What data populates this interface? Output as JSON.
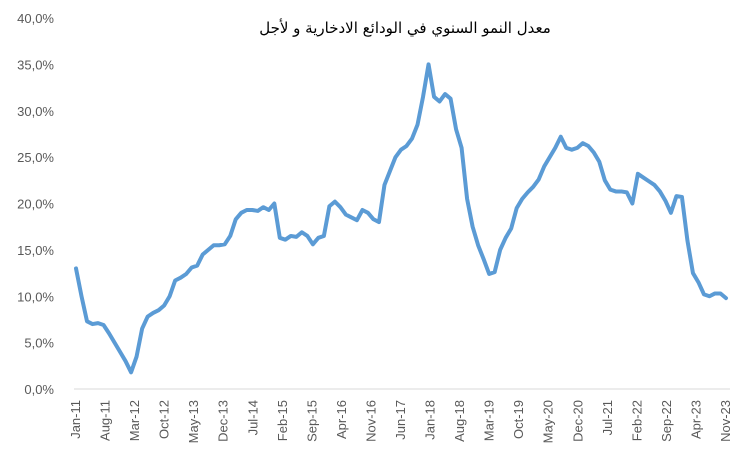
{
  "chart_data": {
    "type": "line",
    "title": "معدل النمو السنوي في الودائع الادخارية و لأجل",
    "xlabel": "",
    "ylabel": "",
    "ylim": [
      0,
      40
    ],
    "y_ticks": [
      "0,0%",
      "5,0%",
      "10,0%",
      "15,0%",
      "20,0%",
      "25,0%",
      "30,0%",
      "35,0%",
      "40,0%"
    ],
    "x_ticks": [
      "Jan-11",
      "Aug-11",
      "Mar-12",
      "Oct-12",
      "May-13",
      "Dec-13",
      "Jul-14",
      "Feb-15",
      "Sep-15",
      "Apr-16",
      "Nov-16",
      "Jun-17",
      "Jan-18",
      "Aug-18",
      "Mar-19",
      "Oct-19",
      "May-20",
      "Dec-20",
      "Jul-21",
      "Feb-22",
      "Sep-22",
      "Apr-23",
      "Nov-23"
    ],
    "grid": false,
    "legend": "none",
    "line_color": "#5B9BD5",
    "series": [
      {
        "values": [
          13,
          10,
          7.3,
          7,
          7.1,
          6.9,
          6,
          5,
          4,
          3,
          1.8,
          3.5,
          6.5,
          7.8,
          8.2,
          8.5,
          9,
          10,
          11.7,
          12,
          12.4,
          13.1,
          13.3,
          14.5,
          15,
          15.5,
          15.5,
          15.6,
          16.5,
          18.3,
          19,
          19.3,
          19.3,
          19.2,
          19.6,
          19.3,
          20,
          16.3,
          16.1,
          16.5,
          16.4,
          16.9,
          16.5,
          15.6,
          16.3,
          16.5,
          19.7,
          20.2,
          19.6,
          18.8,
          18.5,
          18.2,
          19.3,
          19,
          18.3,
          18,
          22,
          23.5,
          25,
          25.8,
          26.2,
          27,
          28.5,
          31.5,
          35,
          31.5,
          31,
          31.8,
          31.3,
          28,
          26,
          20.5,
          17.5,
          15.5,
          14,
          12.4,
          12.6,
          15,
          16.3,
          17.3,
          19.5,
          20.5,
          21.2,
          21.8,
          22.6,
          24,
          25,
          26,
          27.2,
          26,
          25.8,
          26,
          26.5,
          26.2,
          25.5,
          24.5,
          22.5,
          21.5,
          21.3,
          21.3,
          21.2,
          20,
          23.2,
          22.8,
          22.4,
          22,
          21.3,
          20.3,
          19,
          20.8,
          20.7,
          16,
          12.5,
          11.5,
          10.2,
          10,
          10.3,
          10.3,
          9.8
        ]
      }
    ]
  }
}
